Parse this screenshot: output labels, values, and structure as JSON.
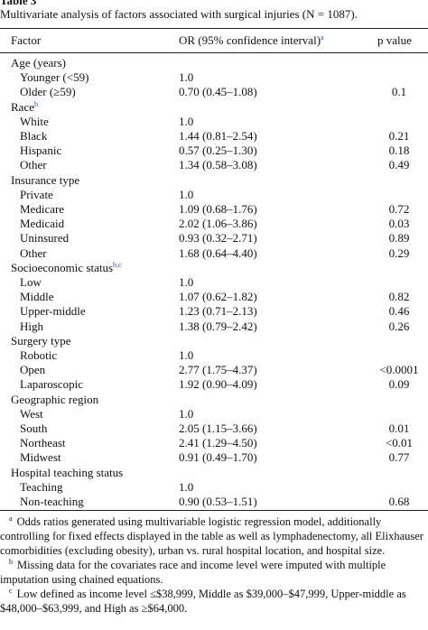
{
  "table_label": "Table 3",
  "caption": "Multivariate analysis of factors associated with surgical injuries (N = 1087).",
  "header": {
    "factor": "Factor",
    "or": "OR (95% confidence interval)",
    "or_sup": "a",
    "p": "p value"
  },
  "sections": [
    {
      "label": "Age (years)",
      "rows": [
        [
          "Younger (<59)",
          "1.0"
        ],
        [
          "Older (≥59)",
          "0.70 (0.45–1.08)",
          "0.1"
        ]
      ]
    },
    {
      "label": "Race",
      "sup": "b",
      "rows": [
        [
          "White",
          "1.0"
        ],
        [
          "Black",
          "1.44 (0.81–2.54)",
          "0.21"
        ],
        [
          "Hispanic",
          "0.57 (0.25–1.30)",
          "0.18"
        ],
        [
          "Other",
          "1.34 (0.58–3.08)",
          "0.49"
        ]
      ]
    },
    {
      "label": "Insurance type",
      "rows": [
        [
          "Private",
          "1.0"
        ],
        [
          "Medicare",
          "1.09 (0.68–1.76)",
          "0.72"
        ],
        [
          "Medicaid",
          "2.02 (1.06–3.86)",
          "0.03"
        ],
        [
          "Uninsured",
          "0.93 (0.32–2.71)",
          "0.89"
        ],
        [
          "Other",
          "1.68 (0.64–4.40)",
          "0.29"
        ]
      ]
    },
    {
      "label": "Socioeconomic status",
      "sup": "b,c",
      "rows": [
        [
          "Low",
          "1.0"
        ],
        [
          "Middle",
          "1.07 (0.62–1.82)",
          "0.82"
        ],
        [
          "Upper-middle",
          "1.23 (0.71–2.13)",
          "0.46"
        ],
        [
          "High",
          "1.38 (0.79–2.42)",
          "0.26"
        ]
      ]
    },
    {
      "label": "Surgery type",
      "rows": [
        [
          "Robotic",
          "1.0"
        ],
        [
          "Open",
          "2.77 (1.75–4.37)",
          "<0.0001"
        ],
        [
          "Laparoscopic",
          "1.92 (0.90–4.09)",
          "0.09"
        ]
      ]
    },
    {
      "label": "Geographic region",
      "rows": [
        [
          "West",
          "1.0"
        ],
        [
          "South",
          "2.05 (1.15–3.66)",
          "0.01"
        ],
        [
          "Northeast",
          "2.41 (1.29–4.50)",
          "<0.01"
        ],
        [
          "Midwest",
          "0.91 (0.49–1.70)",
          "0.77"
        ]
      ]
    },
    {
      "label": "Hospital teaching status",
      "rows": [
        [
          "Teaching",
          "1.0"
        ],
        [
          "Non-teaching",
          "0.90 (0.53–1.51)",
          "0.68"
        ]
      ]
    }
  ],
  "footnotes": [
    {
      "mark": "a",
      "text": "Odds ratios generated using multivariable logistic regression model, additionally controlling for fixed effects displayed in the table as well as lymphadenectomy, all Elixhauser comorbidities (excluding obesity), urban vs. rural hospital location, and hospital size."
    },
    {
      "mark": "b",
      "text": "Missing data for the covariates race and income level were imputed with multiple imputation using chained equations."
    },
    {
      "mark": "c",
      "text": "Low defined as income level ≤$38,999, Middle as $39,000–$47,999, Upper-middle as $48,000–$63,999, and High as ≥$64,000."
    }
  ]
}
